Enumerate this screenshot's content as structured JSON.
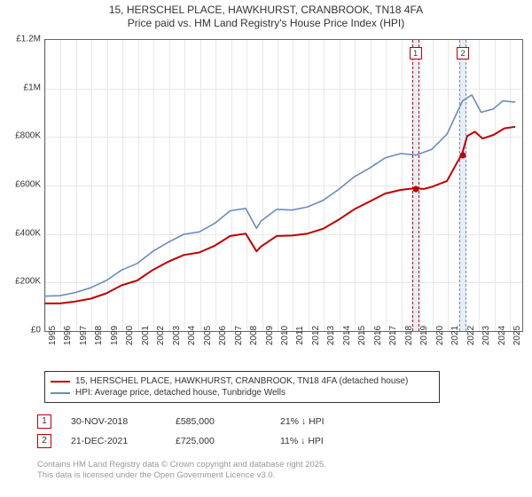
{
  "title": {
    "line1": "15, HERSCHEL PLACE, HAWKHURST, CRANBROOK, TN18 4FA",
    "line2": "Price paid vs. HM Land Registry's House Price Index (HPI)"
  },
  "chart": {
    "ylim": [
      0,
      1200000
    ],
    "xlim": [
      1995,
      2025.8
    ],
    "y_ticks": [
      0,
      200000,
      400000,
      600000,
      800000,
      1000000,
      1200000
    ],
    "y_tick_labels": [
      "£0",
      "£200K",
      "£400K",
      "£600K",
      "£800K",
      "£1M",
      "£1.2M"
    ],
    "x_ticks": [
      1995,
      1996,
      1997,
      1998,
      1999,
      2000,
      2001,
      2002,
      2003,
      2004,
      2005,
      2006,
      2007,
      2008,
      2009,
      2010,
      2011,
      2012,
      2013,
      2014,
      2015,
      2016,
      2017,
      2018,
      2019,
      2020,
      2021,
      2022,
      2023,
      2024,
      2025
    ],
    "background_color": "#ffffff",
    "grid_color": "#e8e8e8",
    "border_color": "#666666",
    "series": {
      "subject": {
        "color": "#c00000",
        "line_width": 2,
        "label": "15, HERSCHEL PLACE, HAWKHURST, CRANBROOK, TN18 4FA (detached house)",
        "points": [
          [
            1995,
            110000
          ],
          [
            1996,
            110000
          ],
          [
            1997,
            118000
          ],
          [
            1998,
            130000
          ],
          [
            1999,
            152000
          ],
          [
            2000,
            185000
          ],
          [
            2001,
            205000
          ],
          [
            2002,
            248000
          ],
          [
            2003,
            282000
          ],
          [
            2004,
            310000
          ],
          [
            2005,
            320000
          ],
          [
            2006,
            348000
          ],
          [
            2007,
            388000
          ],
          [
            2008,
            398000
          ],
          [
            2008.7,
            325000
          ],
          [
            2009,
            345000
          ],
          [
            2010,
            388000
          ],
          [
            2011,
            390000
          ],
          [
            2012,
            398000
          ],
          [
            2013,
            418000
          ],
          [
            2014,
            455000
          ],
          [
            2015,
            498000
          ],
          [
            2016,
            530000
          ],
          [
            2017,
            563000
          ],
          [
            2018,
            578000
          ],
          [
            2018.9,
            585000
          ],
          [
            2019.5,
            582000
          ],
          [
            2020,
            590000
          ],
          [
            2021,
            615000
          ],
          [
            2021.6,
            685000
          ],
          [
            2021.97,
            725000
          ],
          [
            2022.3,
            800000
          ],
          [
            2022.8,
            818000
          ],
          [
            2023.3,
            790000
          ],
          [
            2024,
            805000
          ],
          [
            2024.7,
            832000
          ],
          [
            2025.4,
            838000
          ]
        ]
      },
      "hpi": {
        "color": "#6b8bc1",
        "line_width": 1.6,
        "label": "HPI: Average price, detached house, Tunbridge Wells",
        "points": [
          [
            1995,
            140000
          ],
          [
            1996,
            142000
          ],
          [
            1997,
            155000
          ],
          [
            1998,
            175000
          ],
          [
            1999,
            205000
          ],
          [
            2000,
            248000
          ],
          [
            2001,
            275000
          ],
          [
            2002,
            325000
          ],
          [
            2003,
            362000
          ],
          [
            2004,
            395000
          ],
          [
            2005,
            405000
          ],
          [
            2006,
            440000
          ],
          [
            2007,
            492000
          ],
          [
            2008,
            502000
          ],
          [
            2008.7,
            420000
          ],
          [
            2009,
            450000
          ],
          [
            2010,
            498000
          ],
          [
            2011,
            495000
          ],
          [
            2012,
            508000
          ],
          [
            2013,
            535000
          ],
          [
            2014,
            580000
          ],
          [
            2015,
            632000
          ],
          [
            2016,
            668000
          ],
          [
            2017,
            710000
          ],
          [
            2018,
            728000
          ],
          [
            2019,
            722000
          ],
          [
            2020,
            745000
          ],
          [
            2021,
            808000
          ],
          [
            2022,
            945000
          ],
          [
            2022.6,
            970000
          ],
          [
            2023.2,
            898000
          ],
          [
            2024,
            912000
          ],
          [
            2024.6,
            945000
          ],
          [
            2025.4,
            940000
          ]
        ]
      }
    },
    "highlights": [
      {
        "x": 2018.91,
        "width_years": 0.45,
        "border_color": "#c00000",
        "label": "1"
      },
      {
        "x": 2021.97,
        "width_years": 0.45,
        "border_color": "#6b8bc1",
        "label": "2"
      }
    ],
    "sale_markers": [
      {
        "x": 2018.91,
        "y": 585000,
        "color": "#c00000"
      },
      {
        "x": 2021.97,
        "y": 725000,
        "color": "#c00000"
      }
    ]
  },
  "annotations": [
    {
      "num": "1",
      "date": "30-NOV-2018",
      "price": "£585,000",
      "diff": "21% ↓ HPI"
    },
    {
      "num": "2",
      "date": "21-DEC-2021",
      "price": "£725,000",
      "diff": "11% ↓ HPI"
    }
  ],
  "footer": {
    "line1": "Contains HM Land Registry data © Crown copyright and database right 2025.",
    "line2": "This data is licensed under the Open Government Licence v3.0."
  }
}
